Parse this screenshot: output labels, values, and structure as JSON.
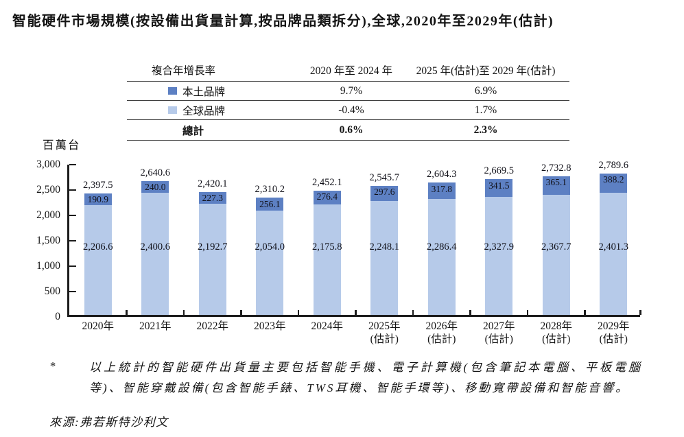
{
  "title": "智能硬件市場規模(按設備出貨量計算,按品牌品類拆分),全球,2020年至2029年(估計)",
  "cagr_table": {
    "header": {
      "col1": "複合年增長率",
      "col2": "2020 年至 2024 年",
      "col3": "2025 年(估計)至 2029 年(估計)"
    },
    "rows": [
      {
        "label": "本土品牌",
        "col2": "9.7%",
        "col3": "6.9%"
      },
      {
        "label": "全球品牌",
        "col2": "-0.4%",
        "col3": "1.7%"
      },
      {
        "label": "總計",
        "col2": "0.6%",
        "col3": "2.3%"
      }
    ]
  },
  "chart_data": {
    "type": "bar",
    "stacked": true,
    "title": "智能硬件市場規模,按品牌品類拆分",
    "unit_label": "百萬台",
    "xlabel": "",
    "ylabel": "百萬台",
    "ylim": [
      0,
      3000
    ],
    "yticks": [
      {
        "value": 0,
        "label": "0"
      },
      {
        "value": 500,
        "label": "500"
      },
      {
        "value": 1000,
        "label": "1,000"
      },
      {
        "value": 1500,
        "label": "1,500"
      },
      {
        "value": 2000,
        "label": "2,000"
      },
      {
        "value": 2500,
        "label": "2,500"
      },
      {
        "value": 3000,
        "label": "3,000"
      }
    ],
    "grid": false,
    "legend_position": "table-above-chart",
    "categories": [
      {
        "label": "2020年",
        "sub": ""
      },
      {
        "label": "2021年",
        "sub": ""
      },
      {
        "label": "2022年",
        "sub": ""
      },
      {
        "label": "2023年",
        "sub": ""
      },
      {
        "label": "2024年",
        "sub": ""
      },
      {
        "label": "2025年",
        "sub": "(估計)"
      },
      {
        "label": "2026年",
        "sub": "(估計)"
      },
      {
        "label": "2027年",
        "sub": "(估計)"
      },
      {
        "label": "2028年",
        "sub": "(估計)"
      },
      {
        "label": "2029年",
        "sub": "(估計)"
      }
    ],
    "series": [
      {
        "name": "本土品牌",
        "color": "#5d80c3",
        "values": [
          190.9,
          240.0,
          227.3,
          256.1,
          276.4,
          297.6,
          317.8,
          341.5,
          365.1,
          388.2
        ],
        "value_labels": [
          "190.9",
          "240.0",
          "227.3",
          "256.1",
          "276.4",
          "297.6",
          "317.8",
          "341.5",
          "365.1",
          "388.2"
        ]
      },
      {
        "name": "全球品牌",
        "color": "#b6cae9",
        "values": [
          2206.6,
          2400.6,
          2192.7,
          2054.0,
          2175.8,
          2248.1,
          2286.4,
          2327.9,
          2367.7,
          2401.3
        ],
        "value_labels": [
          "2,206.6",
          "2,400.6",
          "2,192.7",
          "2,054.0",
          "2,175.8",
          "2,248.1",
          "2,286.4",
          "2,327.9",
          "2,367.7",
          "2,401.3"
        ]
      }
    ],
    "totals": [
      2397.5,
      2640.6,
      2420.1,
      2310.2,
      2452.1,
      2545.7,
      2604.3,
      2669.5,
      2732.8,
      2789.6
    ],
    "total_labels": [
      "2,397.5",
      "2,640.6",
      "2,420.1",
      "2,310.2",
      "2,452.1",
      "2,545.7",
      "2,604.3",
      "2,669.5",
      "2,732.8",
      "2,789.6"
    ]
  },
  "footnote": {
    "marker": "*",
    "text": "以上統計的智能硬件出貨量主要包括智能手機、電子計算機(包含筆記本電腦、平板電腦等)、智能穿戴設備(包含智能手錶、TWS耳機、智能手環等)、移動寬帶設備和智能音響。"
  },
  "source_line": "來源:弗若斯特沙利文"
}
